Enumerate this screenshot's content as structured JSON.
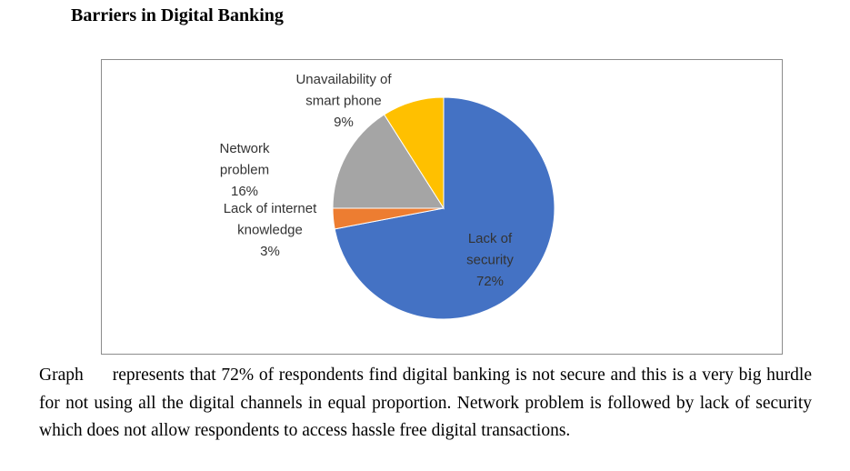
{
  "heading": "Barriers in Digital Banking",
  "chart_data": {
    "type": "pie",
    "title": "",
    "start_angle_deg": 0,
    "direction": "clockwise",
    "slices": [
      {
        "label_lines": [
          "Lack of",
          "security",
          "72%"
        ],
        "value": 72,
        "color": "#4472C4"
      },
      {
        "label_lines": [
          "Lack of internet",
          "knowledge",
          "3%"
        ],
        "value": 3,
        "color": "#ED7D31"
      },
      {
        "label_lines": [
          "Network",
          "problem",
          "16%"
        ],
        "value": 16,
        "color": "#A5A5A5"
      },
      {
        "label_lines": [
          "Unavailability of",
          "smart phone",
          "9%"
        ],
        "value": 9,
        "color": "#FFC000"
      }
    ]
  },
  "paragraph": {
    "lead": "Graph",
    "text": "represents that 72% of respondents find digital banking is not secure and this is a very big hurdle for not using all the digital channels in equal proportion. Network problem is followed by lack of security which does not allow respondents to access hassle free digital transactions."
  }
}
